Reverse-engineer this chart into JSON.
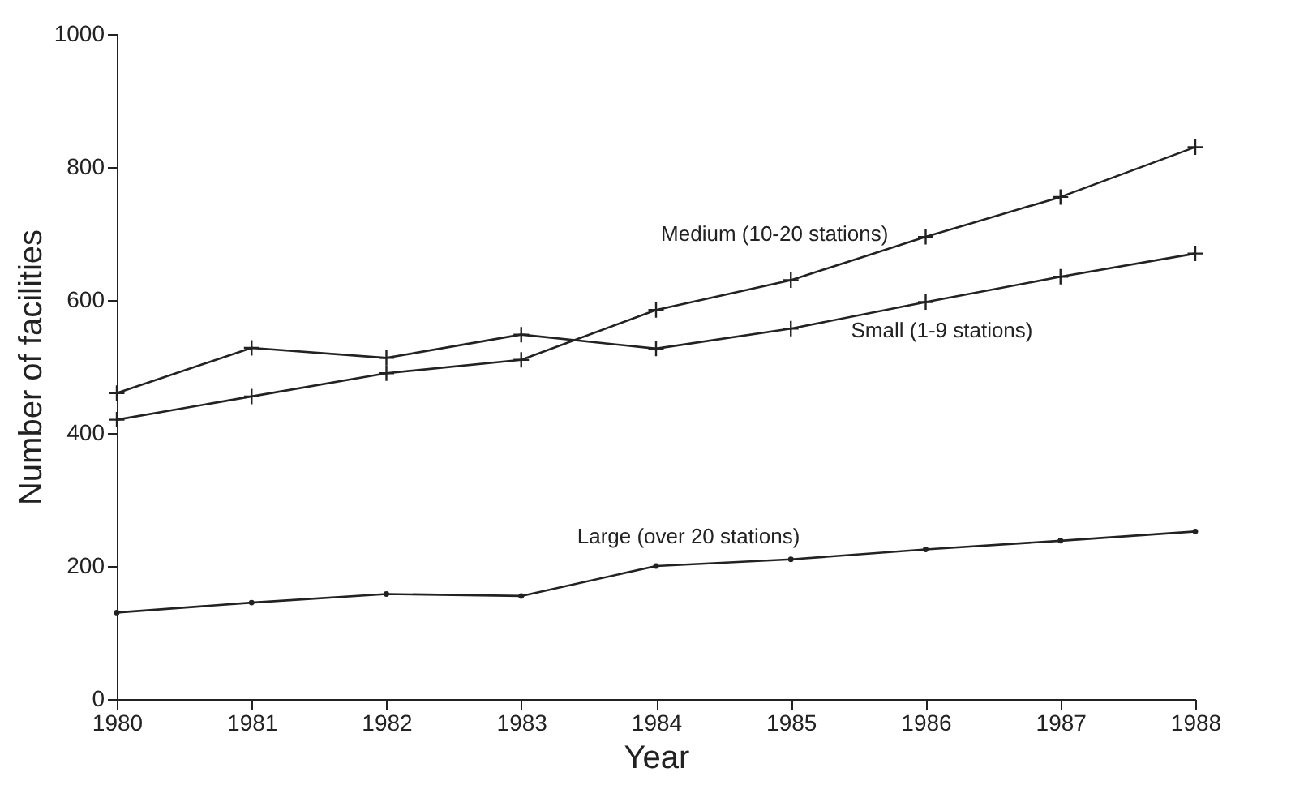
{
  "chart_data": {
    "type": "line",
    "xlabel": "Year",
    "ylabel": "Number of facilities",
    "x": [
      1980,
      1981,
      1982,
      1983,
      1984,
      1985,
      1986,
      1987,
      1988
    ],
    "series": [
      {
        "name": "Medium (10-20 stations)",
        "color": "#222222",
        "marker": "cross",
        "values": [
          420,
          455,
          490,
          510,
          585,
          630,
          695,
          755,
          830
        ]
      },
      {
        "name": "Small (1-9 stations)",
        "color": "#222222",
        "marker": "cross",
        "values": [
          460,
          528,
          513,
          548,
          527,
          557,
          597,
          635,
          670
        ]
      },
      {
        "name": "Large (over 20 stations)",
        "color": "#222222",
        "marker": "circle",
        "values": [
          130,
          145,
          158,
          155,
          200,
          210,
          225,
          238,
          252
        ]
      }
    ],
    "xlim": [
      1980,
      1988
    ],
    "xticks": [
      1980,
      1981,
      1982,
      1983,
      1984,
      1985,
      1986,
      1987,
      1988
    ],
    "ylim": [
      0,
      1000
    ],
    "yticks": [
      0,
      200,
      400,
      600,
      800,
      1000
    ],
    "grid": false,
    "legend": false
  }
}
